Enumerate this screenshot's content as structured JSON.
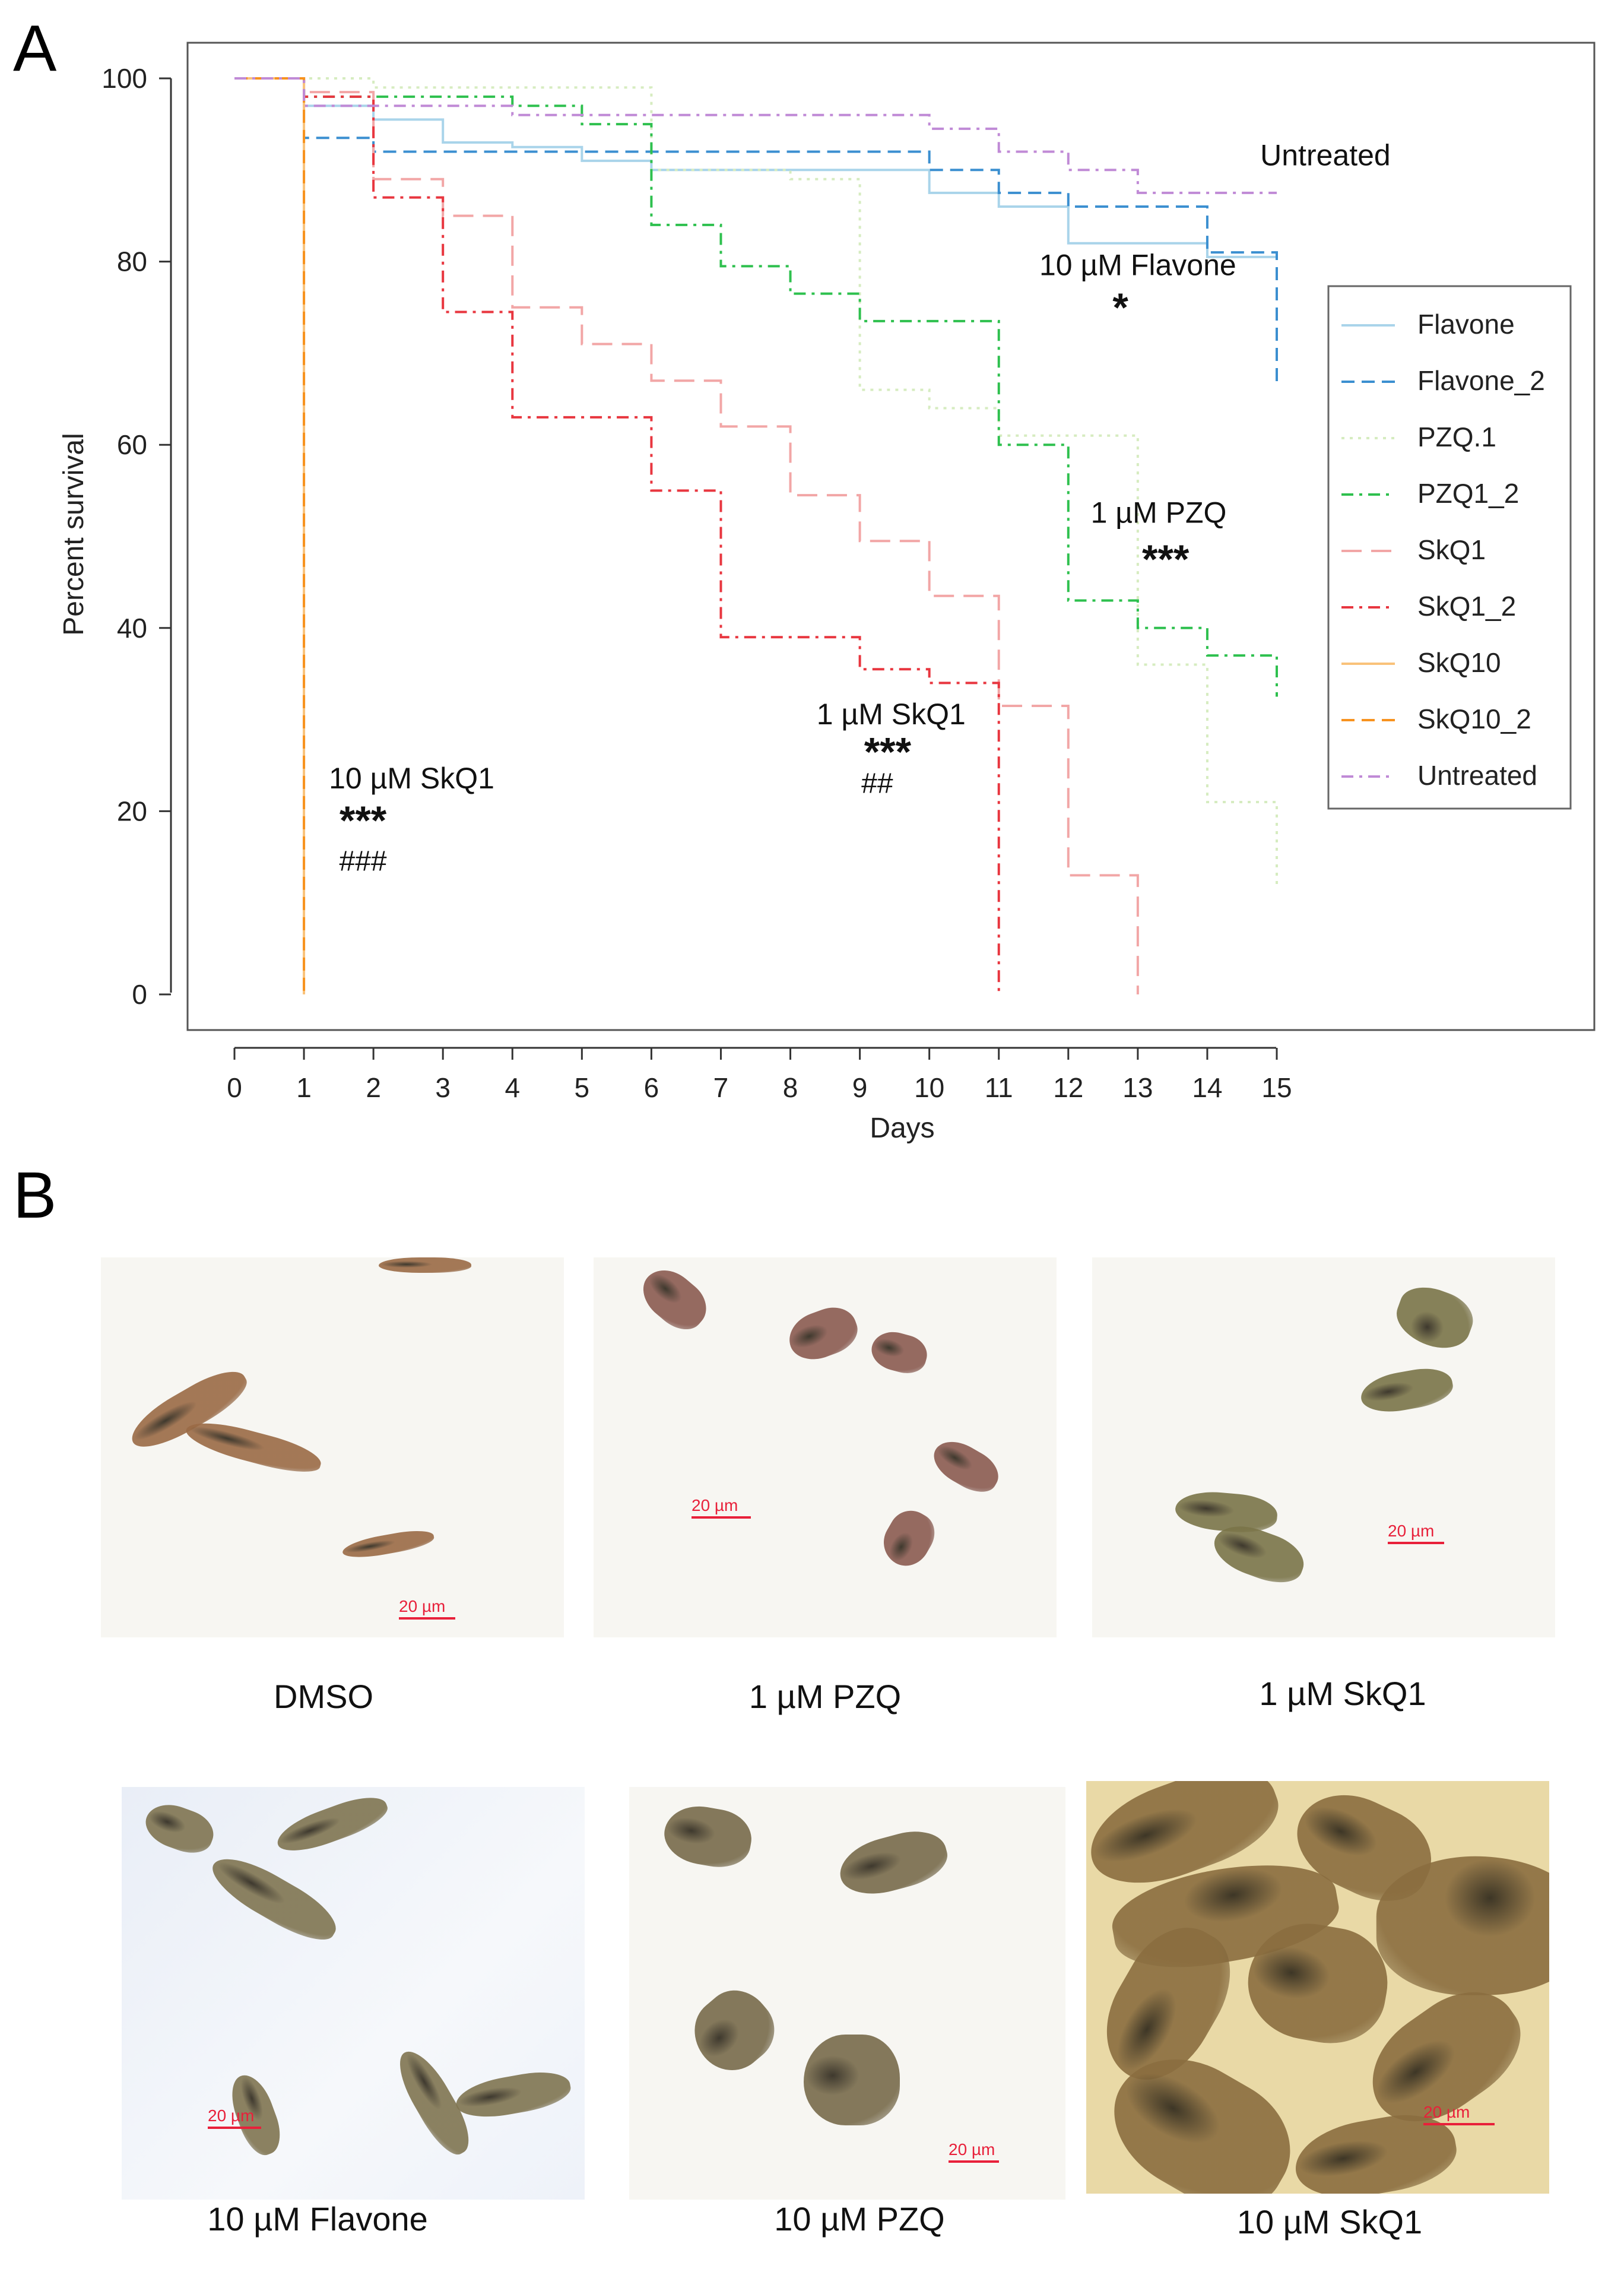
{
  "panel_a": {
    "letter": "A",
    "chart_data": {
      "type": "line",
      "step": true,
      "title": "",
      "xlabel": "Days",
      "ylabel": "Percent survival",
      "xlim": [
        0,
        15
      ],
      "ylim": [
        0,
        100
      ],
      "xticks": [
        "0",
        "1",
        "2",
        "3",
        "4",
        "5",
        "6",
        "7",
        "8",
        "9",
        "10",
        "11",
        "12",
        "13",
        "14",
        "15"
      ],
      "yticks": [
        "0",
        "20",
        "40",
        "60",
        "80",
        "100"
      ],
      "grid": false,
      "legend_position": "right",
      "series": [
        {
          "name": "Flavone",
          "color": "#a9d4ea",
          "dash": "solid",
          "x": [
            0,
            1,
            2,
            3,
            4,
            5,
            6,
            10,
            11,
            12,
            14,
            15
          ],
          "y": [
            100,
            97,
            95.5,
            93,
            92.5,
            91,
            90,
            87.5,
            86,
            82,
            80.5,
            80.5
          ]
        },
        {
          "name": "Flavone_2",
          "color": "#3b8fd0",
          "dash": "dash",
          "x": [
            0,
            1,
            2,
            10,
            11,
            12,
            13,
            14,
            15
          ],
          "y": [
            100,
            93.5,
            92,
            90,
            87.5,
            86,
            86,
            81,
            66.5
          ]
        },
        {
          "name": "PZQ.1",
          "color": "#d6ecc0",
          "dash": "dot",
          "x": [
            0,
            2,
            4,
            6,
            7,
            8,
            9,
            10,
            11,
            13,
            14,
            15
          ],
          "y": [
            100,
            99,
            99,
            90,
            90,
            89,
            66,
            64,
            61,
            36,
            21,
            12
          ]
        },
        {
          "name": "PZQ1_2",
          "color": "#2ec04e",
          "dash": "dashdot",
          "x": [
            0,
            1,
            4,
            5,
            6,
            7,
            8,
            9,
            11,
            12,
            13,
            14,
            15
          ],
          "y": [
            100,
            98,
            97,
            95,
            84,
            79.5,
            76.5,
            73.5,
            60,
            43,
            40,
            37,
            32.5
          ]
        },
        {
          "name": "SkQ1",
          "color": "#f2a6a6",
          "dash": "longdash",
          "x": [
            0,
            1,
            2,
            3,
            4,
            5,
            6,
            7,
            8,
            9,
            10,
            11,
            12,
            13
          ],
          "y": [
            100,
            98.5,
            89,
            85,
            75,
            71,
            67,
            62,
            54.5,
            49.5,
            43.5,
            31.5,
            13,
            0
          ]
        },
        {
          "name": "SkQ1_2",
          "color": "#e8363f",
          "dash": "dashdot",
          "x": [
            0,
            1,
            2,
            3,
            4,
            6,
            7,
            9,
            10,
            11
          ],
          "y": [
            100,
            98,
            87,
            74.5,
            63,
            55,
            39,
            35.5,
            34,
            0
          ]
        },
        {
          "name": "SkQ10",
          "color": "#f9c27a",
          "dash": "solid",
          "x": [
            0,
            1
          ],
          "y": [
            100,
            0
          ]
        },
        {
          "name": "SkQ10_2",
          "color": "#f7921e",
          "dash": "dash",
          "x": [
            0,
            1
          ],
          "y": [
            100,
            0
          ]
        },
        {
          "name": "Untreated",
          "color": "#c08ad6",
          "dash": "dashdot",
          "x": [
            0,
            1,
            4,
            10,
            11,
            12,
            13,
            15
          ],
          "y": [
            100,
            97,
            96,
            94.5,
            92,
            90,
            87.5,
            87.5
          ]
        }
      ],
      "annotations": [
        {
          "text": "Untreated",
          "x": 15.7,
          "y": 90.5,
          "anchor": "middle",
          "size": 50
        },
        {
          "text": "10 µM Flavone",
          "x": 13,
          "y": 78.5,
          "anchor": "middle",
          "size": 50
        },
        {
          "text": "*",
          "x": 12.75,
          "y": 73.5,
          "anchor": "middle",
          "size": 68,
          "bold": true
        },
        {
          "text": "1 µM PZQ",
          "x": 13.3,
          "y": 51.5,
          "anchor": "middle",
          "size": 50
        },
        {
          "text": "***",
          "x": 13.4,
          "y": 46,
          "anchor": "middle",
          "size": 68,
          "bold": true
        },
        {
          "text": "1 µM SkQ1",
          "x": 9.45,
          "y": 29.5,
          "anchor": "middle",
          "size": 50
        },
        {
          "text": "***",
          "x": 9.4,
          "y": 25,
          "anchor": "middle",
          "size": 68,
          "bold": true
        },
        {
          "text": "##",
          "x": 9.25,
          "y": 22,
          "anchor": "middle",
          "size": 48
        },
        {
          "text": "10 µM SkQ1",
          "x": 2.55,
          "y": 22.5,
          "anchor": "middle",
          "size": 50
        },
        {
          "text": "***",
          "x": 1.85,
          "y": 17.5,
          "anchor": "middle",
          "size": 68,
          "bold": true
        },
        {
          "text": "###",
          "x": 1.85,
          "y": 13.5,
          "anchor": "middle",
          "size": 48
        }
      ]
    }
  },
  "panel_b": {
    "letter": "B",
    "scale_text": "20 µm",
    "images": [
      {
        "caption": "DMSO",
        "tone": "light",
        "worm_color": "#9a6a45"
      },
      {
        "caption": "1 µM PZQ",
        "tone": "light",
        "worm_color": "#8a5a50"
      },
      {
        "caption": "1 µM SkQ1",
        "tone": "light",
        "worm_color": "#7a7448"
      },
      {
        "caption": "10 µM Flavone",
        "tone": "cool",
        "worm_color": "#7f7450"
      },
      {
        "caption": "10 µM PZQ",
        "tone": "light",
        "worm_color": "#776a4a"
      },
      {
        "caption": "10 µM SkQ1",
        "tone": "warm",
        "worm_color": "#8a6d3f"
      }
    ]
  }
}
